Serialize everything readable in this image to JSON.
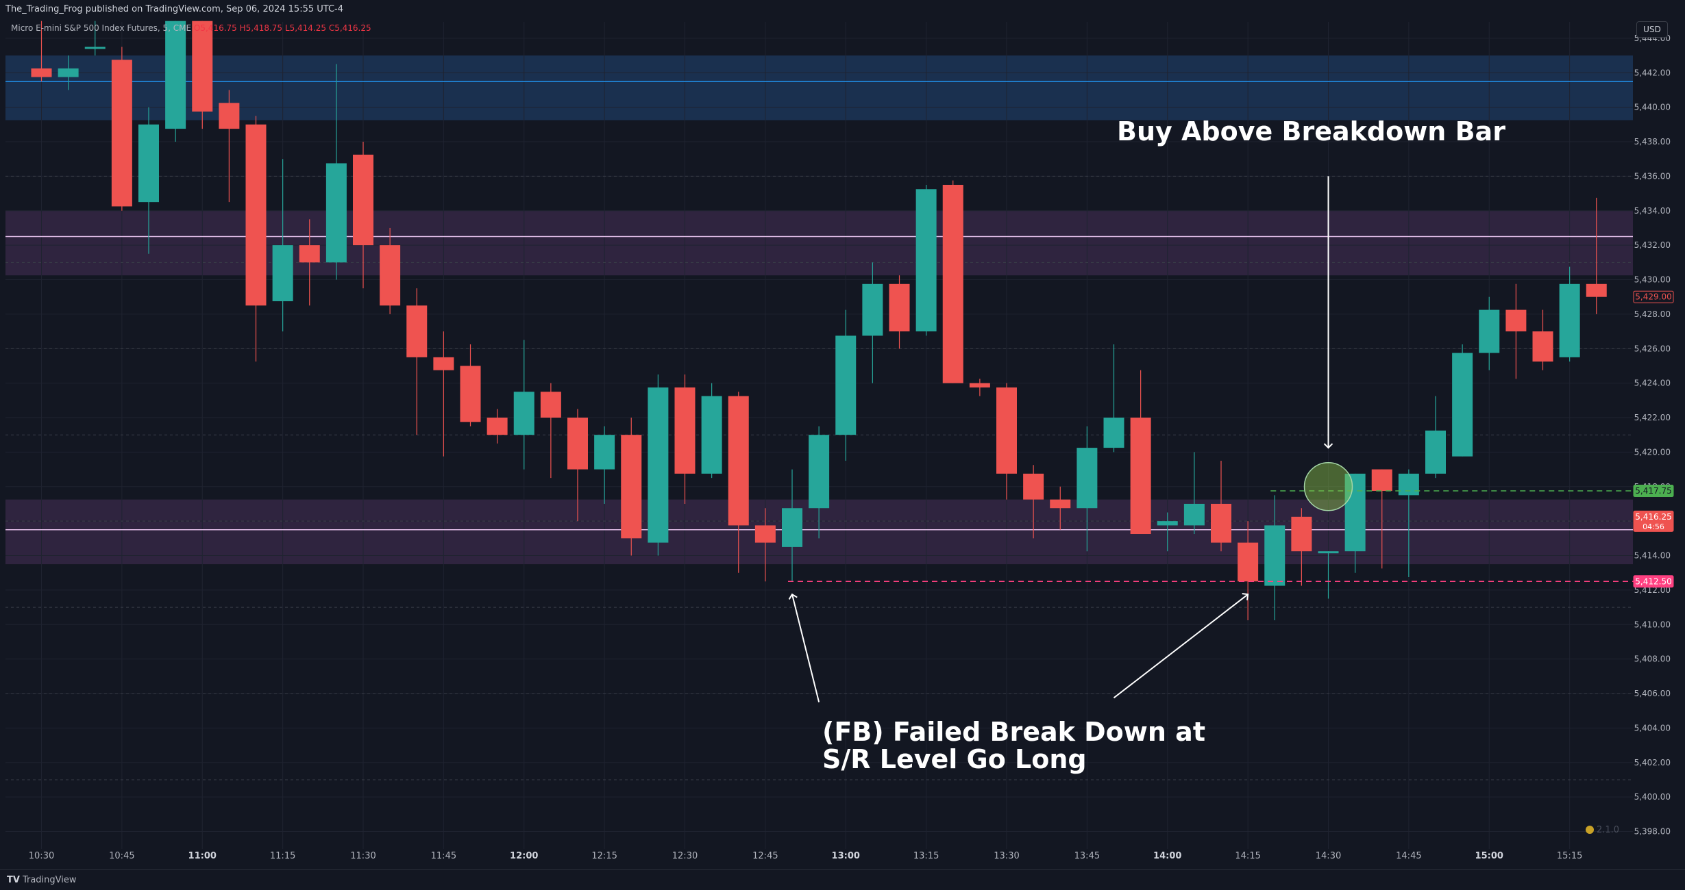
{
  "header": {
    "publisher": "The_Trading_Frog published on TradingView.com, Sep 06, 2024 15:55 UTC-4",
    "symbol": "Micro E-mini S&P 500 Index Futures, 5, CME",
    "ohlc": "O5,416.75 H5,418.75 L5,414.25 C5,416.25",
    "currency": "USD"
  },
  "footer": {
    "brand": "TradingView"
  },
  "colors": {
    "background": "#131722",
    "up": "#26a69a",
    "down": "#ef5350",
    "blue_level": "#2196f3",
    "purple_level": "#e1bee7",
    "green_dashed": "#4caf50",
    "pink_dashed": "#ff4081",
    "axis_text": "#b2b5be"
  },
  "chart_data": {
    "type": "candlestick",
    "interval": "5",
    "x": [
      "10:30",
      "10:35",
      "10:40",
      "10:45",
      "10:50",
      "10:55",
      "11:00",
      "11:05",
      "11:10",
      "11:15",
      "11:20",
      "11:25",
      "11:30",
      "11:35",
      "11:40",
      "11:45",
      "11:50",
      "11:55",
      "12:00",
      "12:05",
      "12:10",
      "12:15",
      "12:20",
      "12:25",
      "12:30",
      "12:35",
      "12:40",
      "12:45",
      "12:50",
      "12:55",
      "13:00",
      "13:05",
      "13:10",
      "13:15",
      "13:20",
      "13:25",
      "13:30",
      "13:35",
      "13:40",
      "13:45",
      "13:50",
      "13:55",
      "14:00",
      "14:05",
      "14:10",
      "14:15",
      "14:20",
      "14:25",
      "14:30",
      "14:35",
      "14:40",
      "14:45",
      "14:50",
      "14:55",
      "15:00",
      "15:05",
      "15:10",
      "15:15",
      "15:20"
    ],
    "x_tick_labels": [
      "10:30",
      "10:45",
      "11:00",
      "11:15",
      "11:30",
      "11:45",
      "12:00",
      "12:15",
      "12:30",
      "12:45",
      "13:00",
      "13:15",
      "13:30",
      "13:45",
      "14:00",
      "14:15",
      "14:30",
      "14:45",
      "15:00",
      "15:15"
    ],
    "x_bold_labels": [
      "11:00",
      "12:00",
      "13:00",
      "14:00",
      "15:00"
    ],
    "candles": [
      {
        "t": "10:30",
        "o": 5442.25,
        "h": 5445.0,
        "l": 5441.5,
        "c": 5441.75
      },
      {
        "t": "10:35",
        "o": 5441.75,
        "h": 5443.0,
        "l": 5441.0,
        "c": 5442.25
      },
      {
        "t": "10:40",
        "o": 5443.5,
        "h": 5445.0,
        "l": 5443.0,
        "c": 5443.5
      },
      {
        "t": "10:45",
        "o": 5442.75,
        "h": 5443.5,
        "l": 5434.0,
        "c": 5434.25
      },
      {
        "t": "10:50",
        "o": 5434.5,
        "h": 5440.0,
        "l": 5431.5,
        "c": 5439.0
      },
      {
        "t": "10:55",
        "o": 5438.75,
        "h": 5445.0,
        "l": 5438.0,
        "c": 5445.0
      },
      {
        "t": "11:00",
        "o": 5445.0,
        "h": 5445.0,
        "l": 5438.75,
        "c": 5439.75
      },
      {
        "t": "11:05",
        "o": 5440.25,
        "h": 5441.0,
        "l": 5434.5,
        "c": 5438.75
      },
      {
        "t": "11:10",
        "o": 5439.0,
        "h": 5439.5,
        "l": 5425.25,
        "c": 5428.5
      },
      {
        "t": "11:15",
        "o": 5428.75,
        "h": 5437.0,
        "l": 5427.0,
        "c": 5432.0
      },
      {
        "t": "11:20",
        "o": 5432.0,
        "h": 5433.5,
        "l": 5428.5,
        "c": 5431.0
      },
      {
        "t": "11:25",
        "o": 5431.0,
        "h": 5442.5,
        "l": 5430.0,
        "c": 5436.75
      },
      {
        "t": "11:30",
        "o": 5437.25,
        "h": 5438.0,
        "l": 5429.5,
        "c": 5432.0
      },
      {
        "t": "11:35",
        "o": 5432.0,
        "h": 5433.0,
        "l": 5428.0,
        "c": 5428.5
      },
      {
        "t": "11:40",
        "o": 5428.5,
        "h": 5429.5,
        "l": 5421.0,
        "c": 5425.5
      },
      {
        "t": "11:45",
        "o": 5425.5,
        "h": 5427.0,
        "l": 5419.75,
        "c": 5424.75
      },
      {
        "t": "11:50",
        "o": 5425.0,
        "h": 5426.25,
        "l": 5421.5,
        "c": 5421.75
      },
      {
        "t": "11:55",
        "o": 5422.0,
        "h": 5422.5,
        "l": 5420.5,
        "c": 5421.0
      },
      {
        "t": "12:00",
        "o": 5421.0,
        "h": 5426.5,
        "l": 5419.0,
        "c": 5423.5
      },
      {
        "t": "12:05",
        "o": 5423.5,
        "h": 5424.0,
        "l": 5418.5,
        "c": 5422.0
      },
      {
        "t": "12:10",
        "o": 5422.0,
        "h": 5422.5,
        "l": 5416.0,
        "c": 5419.0
      },
      {
        "t": "12:15",
        "o": 5419.0,
        "h": 5421.5,
        "l": 5417.0,
        "c": 5421.0
      },
      {
        "t": "12:20",
        "o": 5421.0,
        "h": 5422.0,
        "l": 5414.0,
        "c": 5415.0
      },
      {
        "t": "12:25",
        "o": 5414.75,
        "h": 5424.5,
        "l": 5414.0,
        "c": 5423.75
      },
      {
        "t": "12:30",
        "o": 5423.75,
        "h": 5424.5,
        "l": 5417.0,
        "c": 5418.75
      },
      {
        "t": "12:35",
        "o": 5418.75,
        "h": 5424.0,
        "l": 5418.5,
        "c": 5423.25
      },
      {
        "t": "12:40",
        "o": 5423.25,
        "h": 5423.5,
        "l": 5413.0,
        "c": 5415.75
      },
      {
        "t": "12:45",
        "o": 5415.75,
        "h": 5416.75,
        "l": 5412.5,
        "c": 5414.75
      },
      {
        "t": "12:50",
        "o": 5414.5,
        "h": 5419.0,
        "l": 5412.5,
        "c": 5416.75
      },
      {
        "t": "12:55",
        "o": 5416.75,
        "h": 5421.5,
        "l": 5415.0,
        "c": 5421.0
      },
      {
        "t": "13:00",
        "o": 5421.0,
        "h": 5428.25,
        "l": 5419.5,
        "c": 5426.75
      },
      {
        "t": "13:05",
        "o": 5426.75,
        "h": 5431.0,
        "l": 5424.0,
        "c": 5429.75
      },
      {
        "t": "13:10",
        "o": 5429.75,
        "h": 5430.25,
        "l": 5426.0,
        "c": 5427.0
      },
      {
        "t": "13:15",
        "o": 5427.0,
        "h": 5435.5,
        "l": 5426.75,
        "c": 5435.25
      },
      {
        "t": "13:20",
        "o": 5435.5,
        "h": 5435.75,
        "l": 5424.0,
        "c": 5424.0
      },
      {
        "t": "13:25",
        "o": 5424.0,
        "h": 5424.25,
        "l": 5423.25,
        "c": 5423.75
      },
      {
        "t": "13:30",
        "o": 5423.75,
        "h": 5424.0,
        "l": 5417.25,
        "c": 5418.75
      },
      {
        "t": "13:35",
        "o": 5418.75,
        "h": 5419.25,
        "l": 5415.0,
        "c": 5417.25
      },
      {
        "t": "13:40",
        "o": 5417.25,
        "h": 5418.0,
        "l": 5415.5,
        "c": 5416.75
      },
      {
        "t": "13:45",
        "o": 5416.75,
        "h": 5421.5,
        "l": 5414.25,
        "c": 5420.25
      },
      {
        "t": "13:50",
        "o": 5420.25,
        "h": 5426.25,
        "l": 5420.0,
        "c": 5422.0
      },
      {
        "t": "13:55",
        "o": 5422.0,
        "h": 5424.75,
        "l": 5415.25,
        "c": 5415.25
      },
      {
        "t": "14:00",
        "o": 5415.75,
        "h": 5416.5,
        "l": 5414.25,
        "c": 5416.0
      },
      {
        "t": "14:05",
        "o": 5415.75,
        "h": 5420.0,
        "l": 5415.25,
        "c": 5417.0
      },
      {
        "t": "14:10",
        "o": 5417.0,
        "h": 5419.5,
        "l": 5414.25,
        "c": 5414.75
      },
      {
        "t": "14:15",
        "o": 5414.75,
        "h": 5416.0,
        "l": 5410.25,
        "c": 5412.5
      },
      {
        "t": "14:20",
        "o": 5412.25,
        "h": 5417.5,
        "l": 5410.25,
        "c": 5415.75
      },
      {
        "t": "14:25",
        "o": 5416.25,
        "h": 5416.75,
        "l": 5412.25,
        "c": 5414.25
      },
      {
        "t": "14:30",
        "o": 5414.25,
        "h": 5414.25,
        "l": 5411.5,
        "c": 5414.25
      },
      {
        "t": "14:35",
        "o": 5414.25,
        "h": 5418.75,
        "l": 5413.0,
        "c": 5418.75
      },
      {
        "t": "14:40",
        "o": 5419.0,
        "h": 5419.0,
        "l": 5413.25,
        "c": 5417.75
      },
      {
        "t": "14:45",
        "o": 5417.5,
        "h": 5419.0,
        "l": 5412.75,
        "c": 5418.75
      },
      {
        "t": "14:50",
        "o": 5418.75,
        "h": 5423.25,
        "l": 5418.5,
        "c": 5421.25
      },
      {
        "t": "14:55",
        "o": 5419.75,
        "h": 5426.25,
        "l": 5419.75,
        "c": 5425.75
      },
      {
        "t": "15:00",
        "o": 5425.75,
        "h": 5429.0,
        "l": 5424.75,
        "c": 5428.25
      },
      {
        "t": "15:05",
        "o": 5428.25,
        "h": 5429.75,
        "l": 5424.25,
        "c": 5427.0
      },
      {
        "t": "15:10",
        "o": 5427.0,
        "h": 5428.25,
        "l": 5424.75,
        "c": 5425.25
      },
      {
        "t": "15:15",
        "o": 5425.5,
        "h": 5430.75,
        "l": 5425.25,
        "c": 5429.75
      },
      {
        "t": "15:20",
        "o": 5429.75,
        "h": 5434.75,
        "l": 5428.0,
        "c": 5429.0
      }
    ],
    "y_ticks": [
      5398,
      5400,
      5402,
      5404,
      5406,
      5408,
      5410,
      5412,
      5414,
      5416,
      5418,
      5420,
      5422,
      5424,
      5426,
      5428,
      5430,
      5432,
      5434,
      5436,
      5438,
      5440,
      5442,
      5444
    ],
    "y_tick_labels": [
      "5,398.00",
      "5,400.00",
      "5,402.00",
      "5,404.00",
      "5,406.00",
      "5,408.00",
      "5,410.00",
      "5,412.00",
      "5,414.00",
      "5,416.00",
      "5,418.00",
      "5,420.00",
      "5,422.00",
      "5,424.00",
      "5,426.00",
      "5,428.00",
      "5,430.00",
      "5,432.00",
      "5,434.00",
      "5,436.00",
      "5,438.00",
      "5,440.00",
      "5,442.00",
      "5,444.00"
    ],
    "ylim": [
      5397,
      5445.5
    ],
    "zones": [
      {
        "from": 5439.25,
        "to": 5443.0,
        "color": "#1e3a5f",
        "line": 5441.5,
        "line_color": "#2196f3"
      },
      {
        "from": 5430.25,
        "to": 5434.0,
        "color": "#3a2a4a",
        "line": 5432.5,
        "line_color": "#e1bee7"
      },
      {
        "from": 5413.5,
        "to": 5417.25,
        "color": "#3a2a4a",
        "line": 5415.5,
        "line_color": "#e1bee7"
      }
    ],
    "dotted_levels": [
      5436.0,
      5431.0,
      5426.0,
      5421.0,
      5416.0,
      5411.0,
      5406.0,
      5401.0
    ],
    "dashed_lines": [
      {
        "value": 5417.75,
        "from": "14:20",
        "color": "#4caf50"
      },
      {
        "value": 5412.5,
        "from": "12:50",
        "color": "#ff4081"
      }
    ],
    "price_labels": [
      {
        "value": 5429.0,
        "text": "5,429.00",
        "bg": "#131722",
        "fg": "#ef5350",
        "border": "#ef5350"
      },
      {
        "value": 5417.75,
        "text": "5,417.75",
        "bg": "#4caf50",
        "fg": "#131722"
      },
      {
        "value": 5416.25,
        "text": "5,416.25",
        "sub": "04:56",
        "bg": "#ef5350",
        "fg": "#ffffff"
      },
      {
        "value": 5412.5,
        "text": "5,412.50",
        "bg": "#ff4081",
        "fg": "#ffffff"
      }
    ],
    "annotations": [
      {
        "text": "Buy Above Breakdown Bar"
      },
      {
        "text": "(FB) Failed Break Down at"
      },
      {
        "text": "S/R Level  Go Long"
      }
    ],
    "circle": {
      "t": "14:30",
      "value": 5418.0
    },
    "arrows": [
      {
        "from": {
          "t": "14:30",
          "value": 5436.0
        },
        "to": {
          "t": "14:30",
          "value": 5420.25
        }
      },
      {
        "from": {
          "t": "12:55",
          "value": 5405.5
        },
        "to": {
          "t": "12:50",
          "value": 5411.75
        }
      },
      {
        "from": {
          "t": "13:50",
          "value": 5405.75
        },
        "to": {
          "t": "14:15",
          "value": 5411.75
        }
      }
    ],
    "watermark": "2.1.0"
  }
}
